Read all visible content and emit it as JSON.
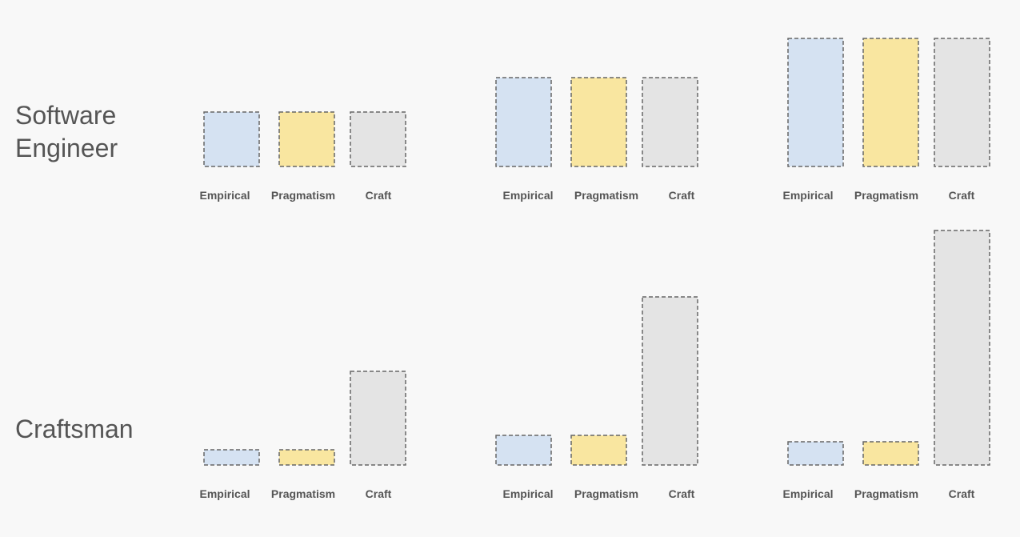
{
  "rows": [
    {
      "label": "Software Engineer"
    },
    {
      "label": "Craftsman"
    }
  ],
  "colors": {
    "Empirical": "#d5e2f2",
    "Pragmatism": "#f9e6a0",
    "Craft": "#e4e4e4",
    "border": "#666666",
    "background": "#f8f8f8"
  },
  "chart_data": [
    {
      "type": "bar",
      "row": 0,
      "col": 0,
      "categories": [
        "Empirical",
        "Pragmatism",
        "Craft"
      ],
      "values": [
        68,
        68,
        68
      ]
    },
    {
      "type": "bar",
      "row": 0,
      "col": 1,
      "categories": [
        "Empirical",
        "Pragmatism",
        "Craft"
      ],
      "values": [
        111,
        111,
        111
      ]
    },
    {
      "type": "bar",
      "row": 0,
      "col": 2,
      "categories": [
        "Empirical",
        "Pragmatism",
        "Craft"
      ],
      "values": [
        160,
        160,
        160
      ]
    },
    {
      "type": "bar",
      "row": 1,
      "col": 0,
      "categories": [
        "Empirical",
        "Pragmatism",
        "Craft"
      ],
      "values": [
        19,
        19,
        117
      ]
    },
    {
      "type": "bar",
      "row": 1,
      "col": 1,
      "categories": [
        "Empirical",
        "Pragmatism",
        "Craft"
      ],
      "values": [
        37,
        37,
        210
      ]
    },
    {
      "type": "bar",
      "row": 1,
      "col": 2,
      "categories": [
        "Empirical",
        "Pragmatism",
        "Craft"
      ],
      "values": [
        29,
        29,
        293
      ]
    }
  ]
}
